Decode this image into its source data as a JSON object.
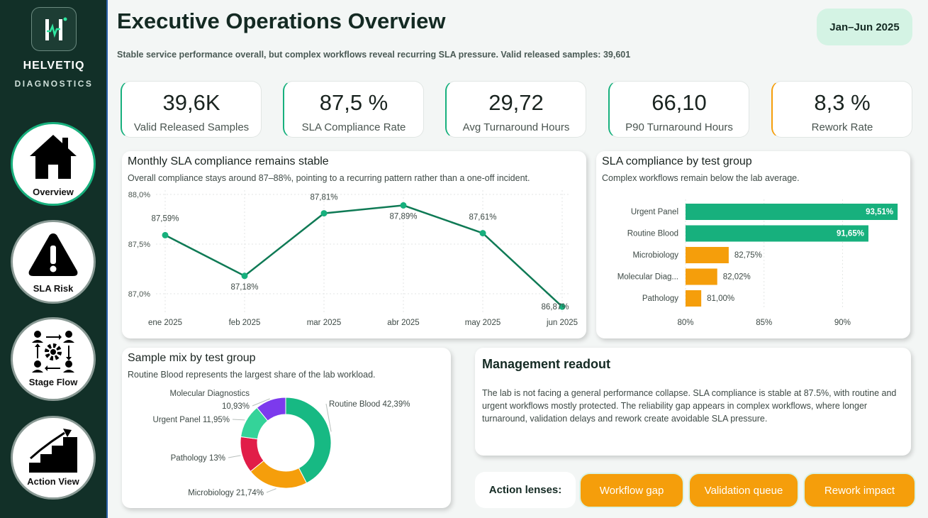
{
  "brand": {
    "name": "HELVETIQ",
    "sub": "DIAGNOSTICS"
  },
  "nav": [
    {
      "label": "Overview",
      "icon": "home-icon",
      "active": true
    },
    {
      "label": "SLA Risk",
      "icon": "warning-icon",
      "active": false
    },
    {
      "label": "Stage Flow",
      "icon": "workflow-icon",
      "active": false
    },
    {
      "label": "Action View",
      "icon": "stairs-arrow-icon",
      "active": false
    }
  ],
  "header": {
    "title": "Executive Operations Overview",
    "subtitle": "Stable service performance overall, but complex workflows reveal recurring SLA pressure.  Valid released samples: 39,601",
    "period": "Jan–Jun 2025"
  },
  "kpis": [
    {
      "value": "39,6K",
      "label": "Valid Released Samples"
    },
    {
      "value": "87,5 %",
      "label": "SLA Compliance Rate"
    },
    {
      "value": "29,72",
      "label": "Avg Turnaround Hours"
    },
    {
      "value": "66,10",
      "label": "P90 Turnaround Hours"
    },
    {
      "value": "8,3 %",
      "label": "Rework Rate"
    }
  ],
  "colors": {
    "green": "#17b07d",
    "line": "#0f7a55",
    "orange": "#f59e0b",
    "sidebar": "#123028"
  },
  "line_panel": {
    "title": "Monthly SLA compliance remains stable",
    "subtitle": "Overall compliance stays around 87–88%, pointing to a recurring pattern rather than a one-off incident."
  },
  "bar_panel": {
    "title": "SLA compliance by test group",
    "subtitle": "Complex workflows remain below the lab average."
  },
  "donut_panel": {
    "title": "Sample mix by test group",
    "subtitle": "Routine Blood represents the largest share of the lab workload."
  },
  "readout": {
    "title": "Management readout",
    "body": "The lab is not facing a general performance collapse. SLA compliance is stable at 87.5%, with routine and urgent workflows mostly protected. The reliability gap appears in complex workflows, where longer turnaround, validation delays and rework create avoidable SLA pressure."
  },
  "lenses": {
    "label": "Action lenses:",
    "buttons": [
      "Workflow gap",
      "Validation queue",
      "Rework impact"
    ]
  },
  "chart_data": [
    {
      "type": "line",
      "x": [
        "ene 2025",
        "feb 2025",
        "mar 2025",
        "abr 2025",
        "may 2025",
        "jun 2025"
      ],
      "values": [
        87.59,
        87.18,
        87.81,
        87.89,
        87.61,
        86.87
      ],
      "data_labels": [
        "87,59%",
        "87,18%",
        "87,81%",
        "87,89%",
        "87,61%",
        "86,87%"
      ],
      "yticks": [
        "87,0%",
        "87,5%",
        "88,0%"
      ],
      "ylim": [
        87.0,
        88.0
      ],
      "grid": true
    },
    {
      "type": "bar",
      "orientation": "horizontal",
      "categories": [
        "Urgent Panel",
        "Routine Blood",
        "Microbiology",
        "Molecular Diag...",
        "Pathology"
      ],
      "values": [
        93.51,
        91.65,
        82.75,
        82.02,
        81.0
      ],
      "data_labels": [
        "93,51%",
        "91,65%",
        "82,75%",
        "82,02%",
        "81,00%"
      ],
      "bar_colors": [
        "#17b07d",
        "#17b07d",
        "#f59e0b",
        "#f59e0b",
        "#f59e0b"
      ],
      "xticks": [
        "80%",
        "85%",
        "90%"
      ],
      "xlim": [
        80,
        94
      ],
      "grid": true
    },
    {
      "type": "pie",
      "donut": true,
      "labels": [
        "Routine Blood",
        "Microbiology",
        "Pathology",
        "Urgent Panel",
        "Molecular Diagnostics"
      ],
      "values": [
        42.39,
        21.74,
        13.0,
        11.95,
        10.93
      ],
      "display": [
        "Routine Blood 42,39%",
        "Microbiology 21,74%",
        "Pathology 13%",
        "Urgent Panel 11,95%",
        "10,93%"
      ],
      "colors": [
        "#17b983",
        "#f59e0b",
        "#e11d48",
        "#34d399",
        "#7c3aed"
      ]
    }
  ]
}
